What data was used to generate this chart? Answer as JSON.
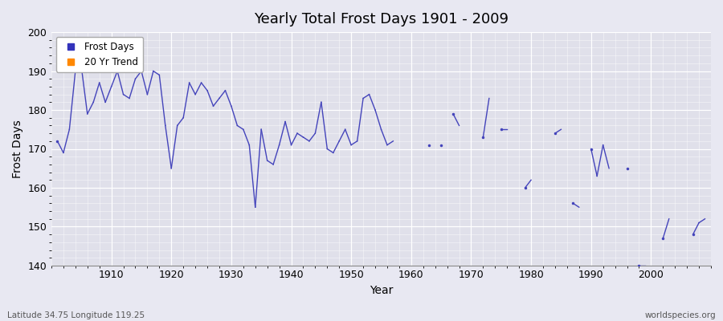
{
  "title": "Yearly Total Frost Days 1901 - 2009",
  "xlabel": "Year",
  "ylabel": "Frost Days",
  "bottom_left_label": "Latitude 34.75 Longitude 119.25",
  "bottom_right_label": "worldspecies.org",
  "ylim": [
    140,
    200
  ],
  "xlim": [
    1901,
    2010
  ],
  "yticks": [
    140,
    150,
    160,
    170,
    180,
    190,
    200
  ],
  "xticks": [
    1910,
    1920,
    1930,
    1940,
    1950,
    1960,
    1970,
    1980,
    1990,
    2000
  ],
  "line_color": "#4444bb",
  "background_color": "#e8e8f2",
  "plot_bg_color": "#e0e0ea",
  "grid_color": "#ffffff",
  "legend_entries": [
    "Frost Days",
    "20 Yr Trend"
  ],
  "legend_colors": [
    "#3333bb",
    "#ff8800"
  ],
  "frost_days": {
    "1901": 172,
    "1902": 169,
    "1903": 175,
    "1904": 190,
    "1905": 191,
    "1906": 179,
    "1907": 182,
    "1908": 187,
    "1909": 182,
    "1910": 186,
    "1911": 190,
    "1912": 184,
    "1913": 183,
    "1914": 188,
    "1915": 190,
    "1916": 184,
    "1917": 190,
    "1918": 189,
    "1919": 176,
    "1920": 165,
    "1921": 176,
    "1922": 178,
    "1923": 187,
    "1924": 184,
    "1925": 187,
    "1926": 185,
    "1927": 181,
    "1928": 183,
    "1929": 185,
    "1930": 181,
    "1931": 176,
    "1932": 175,
    "1933": 171,
    "1934": 155,
    "1935": 175,
    "1936": 167,
    "1937": 166,
    "1938": 171,
    "1939": 177,
    "1940": 171,
    "1941": 174,
    "1942": 173,
    "1943": 172,
    "1944": 174,
    "1945": 182,
    "1946": 170,
    "1947": 169,
    "1948": 172,
    "1949": 175,
    "1950": 171,
    "1951": 172,
    "1952": 183,
    "1953": 184,
    "1954": 180,
    "1955": 175,
    "1956": 171,
    "1957": 172,
    "1963": 171,
    "1965": 171,
    "1967": 179,
    "1968": 176,
    "1972": 173,
    "1973": 183,
    "1975": 175,
    "1976": 175,
    "1979": 160,
    "1980": 162,
    "1984": 174,
    "1985": 175,
    "1987": 156,
    "1988": 155,
    "1990": 170,
    "1991": 163,
    "1992": 171,
    "1993": 165,
    "1996": 165,
    "1998": 140,
    "1999": 140,
    "2002": 147,
    "2003": 152,
    "2007": 148,
    "2008": 151,
    "2009": 152
  }
}
